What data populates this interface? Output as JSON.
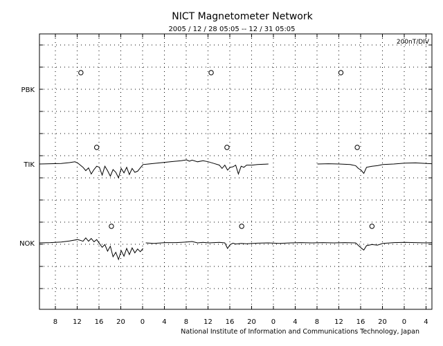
{
  "title": "NICT Magnetometer Network",
  "subtitle": "2005 / 12 / 28   05:05 -- 12 / 31   05:05",
  "scale_label": "200nT/DIV",
  "credit": "National Institute of Information and Communications Technology, Japan",
  "colors": {
    "trace": "#000000",
    "grid": "#000000",
    "background": "#ffffff"
  },
  "chart_data": {
    "type": "line",
    "title": "NICT Magnetometer Network",
    "subtitle": "2005 / 12 / 28   05:05 -- 12 / 31   05:05",
    "x_unit": "hours UT",
    "x_range_hours": [
      0,
      72
    ],
    "x_tick_labels": [
      "8",
      "12",
      "16",
      "20",
      "0",
      "4",
      "8",
      "12",
      "16",
      "20",
      "0",
      "4",
      "8",
      "12",
      "16",
      "20",
      "0",
      "4"
    ],
    "x_tick_hours": [
      2.92,
      6.92,
      10.92,
      14.92,
      18.92,
      22.92,
      26.92,
      30.92,
      34.92,
      38.92,
      42.92,
      46.92,
      50.92,
      54.92,
      58.92,
      62.92,
      66.92,
      70.92
    ],
    "y_scale": "200 nT per division",
    "grid": true,
    "stations": [
      {
        "name": "PBK",
        "markers_hours": [
          7.6,
          31.5,
          55.3
        ],
        "segments": []
      },
      {
        "name": "TIK",
        "markers_hours": [
          10.5,
          34.4,
          58.3
        ],
        "segments": [
          {
            "x": [
              0,
              2,
              4,
              5.5,
              6.5,
              7,
              8,
              8.5,
              9,
              9.5,
              10,
              10.5,
              11,
              11.5,
              12,
              12.5,
              13,
              13.5,
              14,
              14.5,
              15,
              15.5,
              16,
              16.5,
              17,
              17.5,
              18,
              18.5,
              19,
              20,
              22,
              24,
              26,
              27,
              27.5,
              28,
              29,
              30,
              31,
              32,
              33,
              33.5,
              34,
              34.5,
              35,
              35.5,
              36,
              36.5,
              37,
              37.5,
              38,
              39,
              40,
              41,
              42
            ],
            "y": [
              0,
              5,
              10,
              25,
              40,
              20,
              -60,
              -120,
              -70,
              -180,
              -100,
              -40,
              -60,
              -200,
              -40,
              -120,
              -220,
              -100,
              -150,
              -250,
              -80,
              -160,
              -60,
              -190,
              -80,
              -150,
              -130,
              -70,
              -10,
              0,
              20,
              40,
              60,
              75,
              50,
              70,
              40,
              60,
              40,
              10,
              -20,
              -80,
              -20,
              -110,
              -60,
              -50,
              -20,
              -180,
              -40,
              -60,
              -20,
              -20,
              -10,
              -5,
              0
            ]
          },
          {
            "x": [
              51,
              53,
              55,
              57,
              58,
              58.5,
              59,
              59.5,
              60,
              60.5,
              61,
              62,
              63,
              65,
              67,
              69,
              71,
              72
            ],
            "y": [
              0,
              5,
              0,
              -10,
              -30,
              -80,
              -110,
              -170,
              -60,
              -50,
              -40,
              -30,
              -10,
              0,
              15,
              20,
              10,
              5
            ]
          }
        ]
      },
      {
        "name": "NOK",
        "markers_hours": [
          13.2,
          37.1,
          61.0
        ],
        "segments": [
          {
            "x": [
              0,
              2,
              4,
              5.5,
              7,
              8,
              8.5,
              9,
              9.5,
              10,
              10.5,
              11,
              11.5,
              12,
              12.5,
              13,
              13.5,
              14,
              14.5,
              15,
              15.5,
              16,
              16.5,
              17,
              17.5,
              18,
              18.5,
              19
            ],
            "y": [
              0,
              5,
              15,
              35,
              60,
              30,
              90,
              30,
              80,
              20,
              60,
              -10,
              -80,
              -30,
              -150,
              -60,
              -250,
              -170,
              -300,
              -140,
              -240,
              -100,
              -210,
              -90,
              -180,
              -110,
              -160,
              -100
            ]
          },
          {
            "x": [
              19.5,
              21,
              23,
              25,
              26,
              27,
              28,
              29,
              30,
              31,
              32,
              33,
              34,
              34.5,
              35,
              35.5,
              36,
              37,
              38,
              40,
              42,
              44,
              46,
              48,
              50,
              52,
              54,
              56,
              58,
              59,
              59.5,
              60,
              61,
              62,
              63,
              65,
              67,
              69,
              71,
              72
            ],
            "y": [
              0,
              -10,
              5,
              5,
              10,
              15,
              25,
              0,
              10,
              0,
              5,
              10,
              0,
              -100,
              -30,
              -5,
              -20,
              -10,
              -15,
              -5,
              0,
              -10,
              0,
              5,
              0,
              5,
              0,
              5,
              0,
              -90,
              -130,
              -50,
              -30,
              -40,
              -10,
              5,
              10,
              5,
              0,
              5
            ]
          }
        ]
      }
    ]
  }
}
